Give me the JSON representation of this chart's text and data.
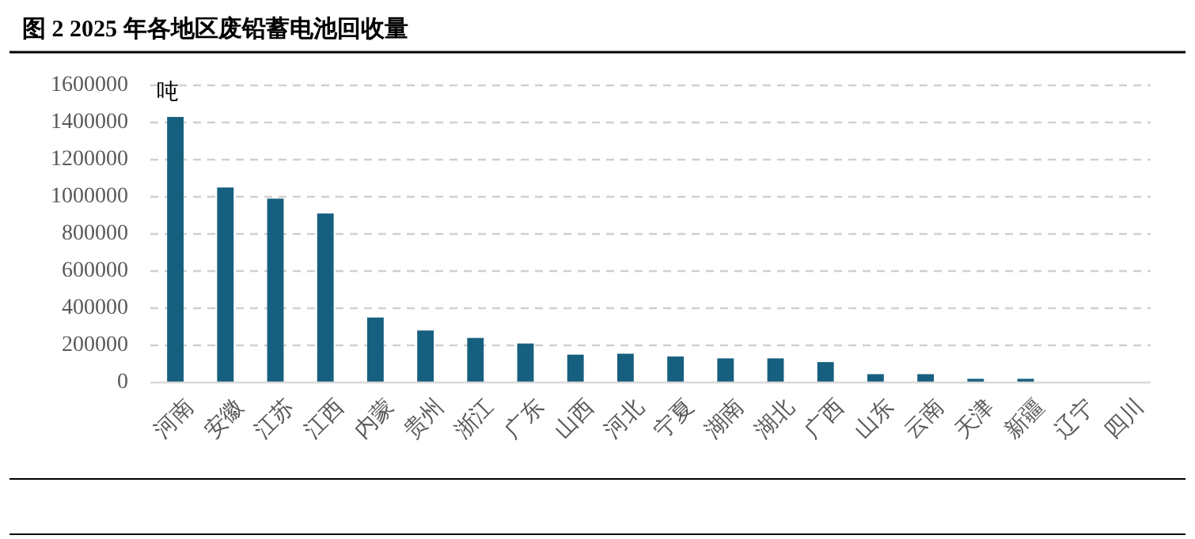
{
  "chart_data": {
    "type": "bar",
    "title": "图 2 2025 年各地区废铅蓄电池回收量",
    "ylabel": "吨",
    "categories": [
      "河南",
      "安徽",
      "江苏",
      "江西",
      "内蒙",
      "贵州",
      "浙江",
      "广东",
      "山西",
      "河北",
      "宁夏",
      "湖南",
      "湖北",
      "广西",
      "山东",
      "云南",
      "天津",
      "新疆",
      "辽宁",
      "四川"
    ],
    "values": [
      1430000,
      1050000,
      990000,
      910000,
      350000,
      280000,
      240000,
      210000,
      150000,
      155000,
      140000,
      130000,
      130000,
      110000,
      45000,
      45000,
      20000,
      20000,
      0,
      0
    ],
    "color": "#175f7f",
    "ylim": [
      0,
      1600000
    ],
    "yticks": [
      0,
      200000,
      400000,
      600000,
      800000,
      1000000,
      1200000,
      1400000,
      1600000
    ],
    "grid": "y"
  }
}
